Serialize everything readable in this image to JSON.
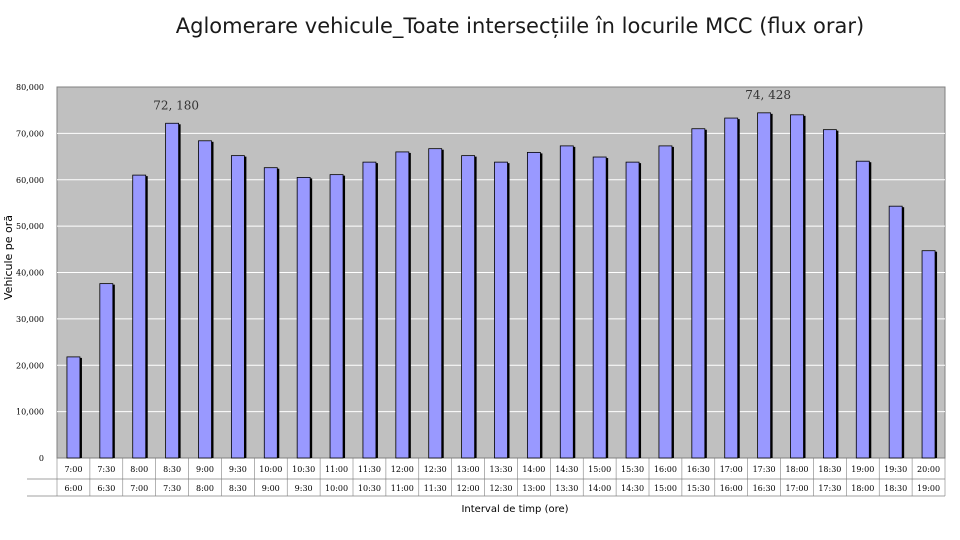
{
  "chart_data": {
    "type": "bar",
    "title": "Aglomerare vehicule_Toate intersecțiile în locurile MCC (flux orar)",
    "xlabel": "Interval de timp (ore)",
    "ylabel": "Vehicule pe oră",
    "ylim": [
      0,
      80000
    ],
    "yticks": [
      "0",
      "10,000",
      "20,000",
      "30,000",
      "40,000",
      "50,000",
      "60,000",
      "70,000",
      "80,000"
    ],
    "grid": true,
    "categories_end": [
      "7:00",
      "7:30",
      "8:00",
      "8:30",
      "9:00",
      "9:30",
      "10:00",
      "10:30",
      "11:00",
      "11:30",
      "12:00",
      "12:30",
      "13:00",
      "13:30",
      "14:00",
      "14:30",
      "15:00",
      "15:30",
      "16:00",
      "16:30",
      "17:00",
      "17:30",
      "18:00",
      "18:30",
      "19:00",
      "19:30",
      "20:00"
    ],
    "categories_start": [
      "6:00",
      "6:30",
      "7:00",
      "7:30",
      "8:00",
      "8:30",
      "9:00",
      "9:30",
      "10:00",
      "10:30",
      "11:00",
      "11:30",
      "12:00",
      "12:30",
      "13:00",
      "13:30",
      "14:00",
      "14:30",
      "15:00",
      "15:30",
      "16:00",
      "16:30",
      "17:00",
      "17:30",
      "18:00",
      "18:30",
      "19:00"
    ],
    "values": [
      21800,
      37600,
      61000,
      72180,
      68400,
      65200,
      62600,
      60500,
      61100,
      63800,
      66000,
      66700,
      65200,
      63800,
      65900,
      67300,
      64900,
      63800,
      67300,
      71000,
      73300,
      74428,
      74000,
      70800,
      64000,
      54300,
      44700
    ],
    "annotations": [
      {
        "index": 3,
        "text": "72, 180"
      },
      {
        "index": 21,
        "text": "74, 428"
      }
    ],
    "colors": {
      "bar": "#9999ff",
      "plot_bg": "#c0c0c0",
      "grid": "#ffffff",
      "bar_edge": "#000000"
    }
  }
}
